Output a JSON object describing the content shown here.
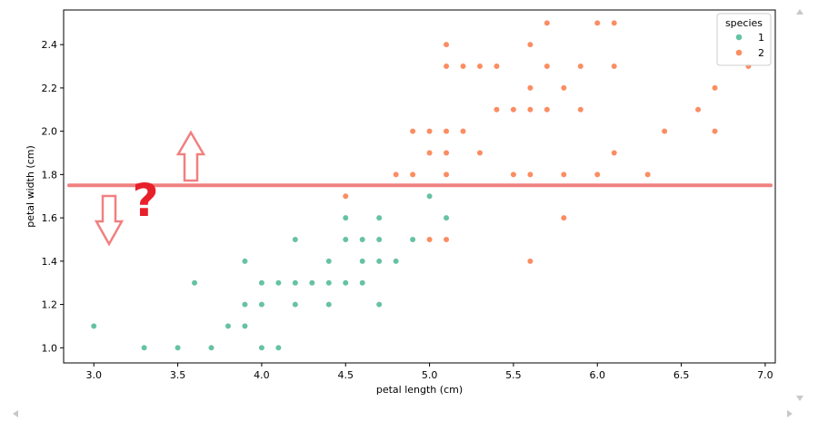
{
  "chart_data": {
    "type": "scatter",
    "title": "",
    "xlabel": "petal length (cm)",
    "ylabel": "petal width (cm)",
    "xlim": [
      2.82,
      7.06
    ],
    "ylim": [
      0.93,
      2.56
    ],
    "xticks": [
      "3.0",
      "3.5",
      "4.0",
      "4.5",
      "5.0",
      "5.5",
      "6.0",
      "6.5",
      "7.0"
    ],
    "yticks": [
      "1.0",
      "1.2",
      "1.4",
      "1.6",
      "1.8",
      "2.0",
      "2.2",
      "2.4"
    ],
    "grid": false,
    "legend": {
      "title": "species",
      "placement": "top-right"
    },
    "series": [
      {
        "name": "1",
        "color": "#66c2a5",
        "points": [
          [
            3.0,
            1.1
          ],
          [
            3.3,
            1.0
          ],
          [
            3.5,
            1.0
          ],
          [
            3.7,
            1.0
          ],
          [
            3.6,
            1.3
          ],
          [
            3.8,
            1.1
          ],
          [
            3.9,
            1.1
          ],
          [
            3.9,
            1.2
          ],
          [
            3.9,
            1.4
          ],
          [
            4.0,
            1.0
          ],
          [
            4.1,
            1.0
          ],
          [
            4.0,
            1.2
          ],
          [
            4.0,
            1.3
          ],
          [
            4.1,
            1.3
          ],
          [
            4.2,
            1.2
          ],
          [
            4.2,
            1.3
          ],
          [
            4.2,
            1.5
          ],
          [
            4.3,
            1.3
          ],
          [
            4.4,
            1.2
          ],
          [
            4.4,
            1.3
          ],
          [
            4.4,
            1.4
          ],
          [
            4.5,
            1.3
          ],
          [
            4.5,
            1.5
          ],
          [
            4.5,
            1.6
          ],
          [
            4.6,
            1.3
          ],
          [
            4.6,
            1.4
          ],
          [
            4.6,
            1.5
          ],
          [
            4.7,
            1.2
          ],
          [
            4.7,
            1.4
          ],
          [
            4.7,
            1.5
          ],
          [
            4.7,
            1.6
          ],
          [
            4.8,
            1.4
          ],
          [
            4.9,
            1.5
          ],
          [
            5.0,
            1.7
          ],
          [
            5.1,
            1.6
          ]
        ]
      },
      {
        "name": "2",
        "color": "#fc8d62",
        "points": [
          [
            4.5,
            1.7
          ],
          [
            4.8,
            1.8
          ],
          [
            4.9,
            1.8
          ],
          [
            4.9,
            2.0
          ],
          [
            5.0,
            1.5
          ],
          [
            5.1,
            1.5
          ],
          [
            5.0,
            1.9
          ],
          [
            5.0,
            2.0
          ],
          [
            5.1,
            1.8
          ],
          [
            5.1,
            1.9
          ],
          [
            5.1,
            2.0
          ],
          [
            5.1,
            2.3
          ],
          [
            5.1,
            2.4
          ],
          [
            5.2,
            2.0
          ],
          [
            5.2,
            2.3
          ],
          [
            5.3,
            1.9
          ],
          [
            5.3,
            2.3
          ],
          [
            5.4,
            2.1
          ],
          [
            5.4,
            2.3
          ],
          [
            5.5,
            1.8
          ],
          [
            5.5,
            2.1
          ],
          [
            5.6,
            1.4
          ],
          [
            5.6,
            1.8
          ],
          [
            5.6,
            2.1
          ],
          [
            5.6,
            2.2
          ],
          [
            5.6,
            2.4
          ],
          [
            5.7,
            2.1
          ],
          [
            5.7,
            2.3
          ],
          [
            5.7,
            2.5
          ],
          [
            5.8,
            1.6
          ],
          [
            5.8,
            1.8
          ],
          [
            5.8,
            2.2
          ],
          [
            5.9,
            2.1
          ],
          [
            5.9,
            2.3
          ],
          [
            6.0,
            1.8
          ],
          [
            6.0,
            2.5
          ],
          [
            6.1,
            1.9
          ],
          [
            6.1,
            2.3
          ],
          [
            6.1,
            2.5
          ],
          [
            6.3,
            1.8
          ],
          [
            6.4,
            2.0
          ],
          [
            6.6,
            2.1
          ],
          [
            6.7,
            2.0
          ],
          [
            6.7,
            2.2
          ],
          [
            6.9,
            2.3
          ]
        ]
      }
    ],
    "annotations": {
      "threshold_line": {
        "y": 1.75,
        "color": "#f08080"
      },
      "question_mark": "?",
      "question_color": "#e8202a",
      "arrow_color": "#f08080"
    }
  }
}
